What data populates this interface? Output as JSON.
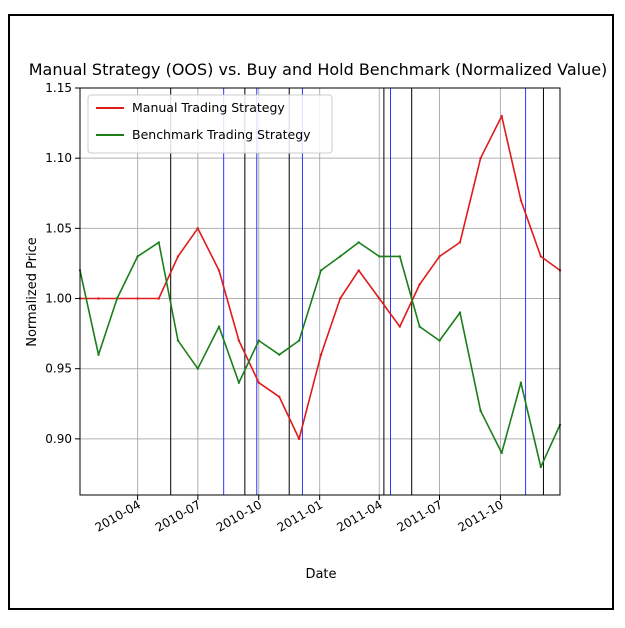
{
  "chart_data": {
    "type": "line",
    "title": "Manual Strategy (OOS) vs. Buy and Hold Benchmark (Normalized Value)",
    "xlabel": "Date",
    "ylabel": "Normalized Price",
    "x_range": [
      "2010-01-04",
      "2011-12-30"
    ],
    "ylim": [
      0.86,
      1.15
    ],
    "x_ticks": [
      "2010-04",
      "2010-07",
      "2010-10",
      "2011-01",
      "2011-04",
      "2011-07",
      "2011-10"
    ],
    "y_ticks": [
      "0.90",
      "0.95",
      "1.00",
      "1.05",
      "1.10",
      "1.15"
    ],
    "grid": true,
    "legend_position": "top-left",
    "x": [
      "2010-01-04",
      "2010-02-01",
      "2010-03-01",
      "2010-04-01",
      "2010-05-03",
      "2010-06-01",
      "2010-07-01",
      "2010-08-02",
      "2010-09-01",
      "2010-10-01",
      "2010-11-01",
      "2010-12-01",
      "2011-01-03",
      "2011-02-01",
      "2011-03-01",
      "2011-04-01",
      "2011-05-02",
      "2011-06-01",
      "2011-07-01",
      "2011-08-01",
      "2011-09-01",
      "2011-10-03",
      "2011-11-01",
      "2011-12-01",
      "2011-12-30"
    ],
    "series": [
      {
        "name": "Manual Trading Strategy",
        "color": "#e01b1b",
        "values": [
          1.0,
          1.0,
          1.0,
          1.0,
          1.0,
          1.03,
          1.05,
          1.02,
          0.97,
          0.94,
          0.93,
          0.9,
          0.96,
          1.0,
          1.02,
          1.0,
          0.98,
          1.01,
          1.03,
          1.04,
          1.1,
          1.13,
          1.07,
          1.03,
          1.02
        ]
      },
      {
        "name": "Benchmark Trading Strategy",
        "color": "#1a7f1a",
        "values": [
          1.02,
          0.96,
          1.0,
          1.03,
          1.04,
          0.97,
          0.95,
          0.98,
          0.94,
          0.97,
          0.96,
          0.97,
          1.02,
          1.03,
          1.04,
          1.03,
          1.03,
          0.98,
          0.97,
          0.99,
          0.92,
          0.89,
          0.94,
          0.88,
          0.91
        ]
      }
    ],
    "vertical_lines": {
      "black": [
        "2010-05-21",
        "2010-09-10",
        "2010-11-16",
        "2011-04-08",
        "2011-05-20",
        "2011-12-05"
      ],
      "blue": [
        "2010-08-09",
        "2010-09-28",
        "2010-12-06",
        "2011-04-18",
        "2011-11-08"
      ]
    }
  }
}
